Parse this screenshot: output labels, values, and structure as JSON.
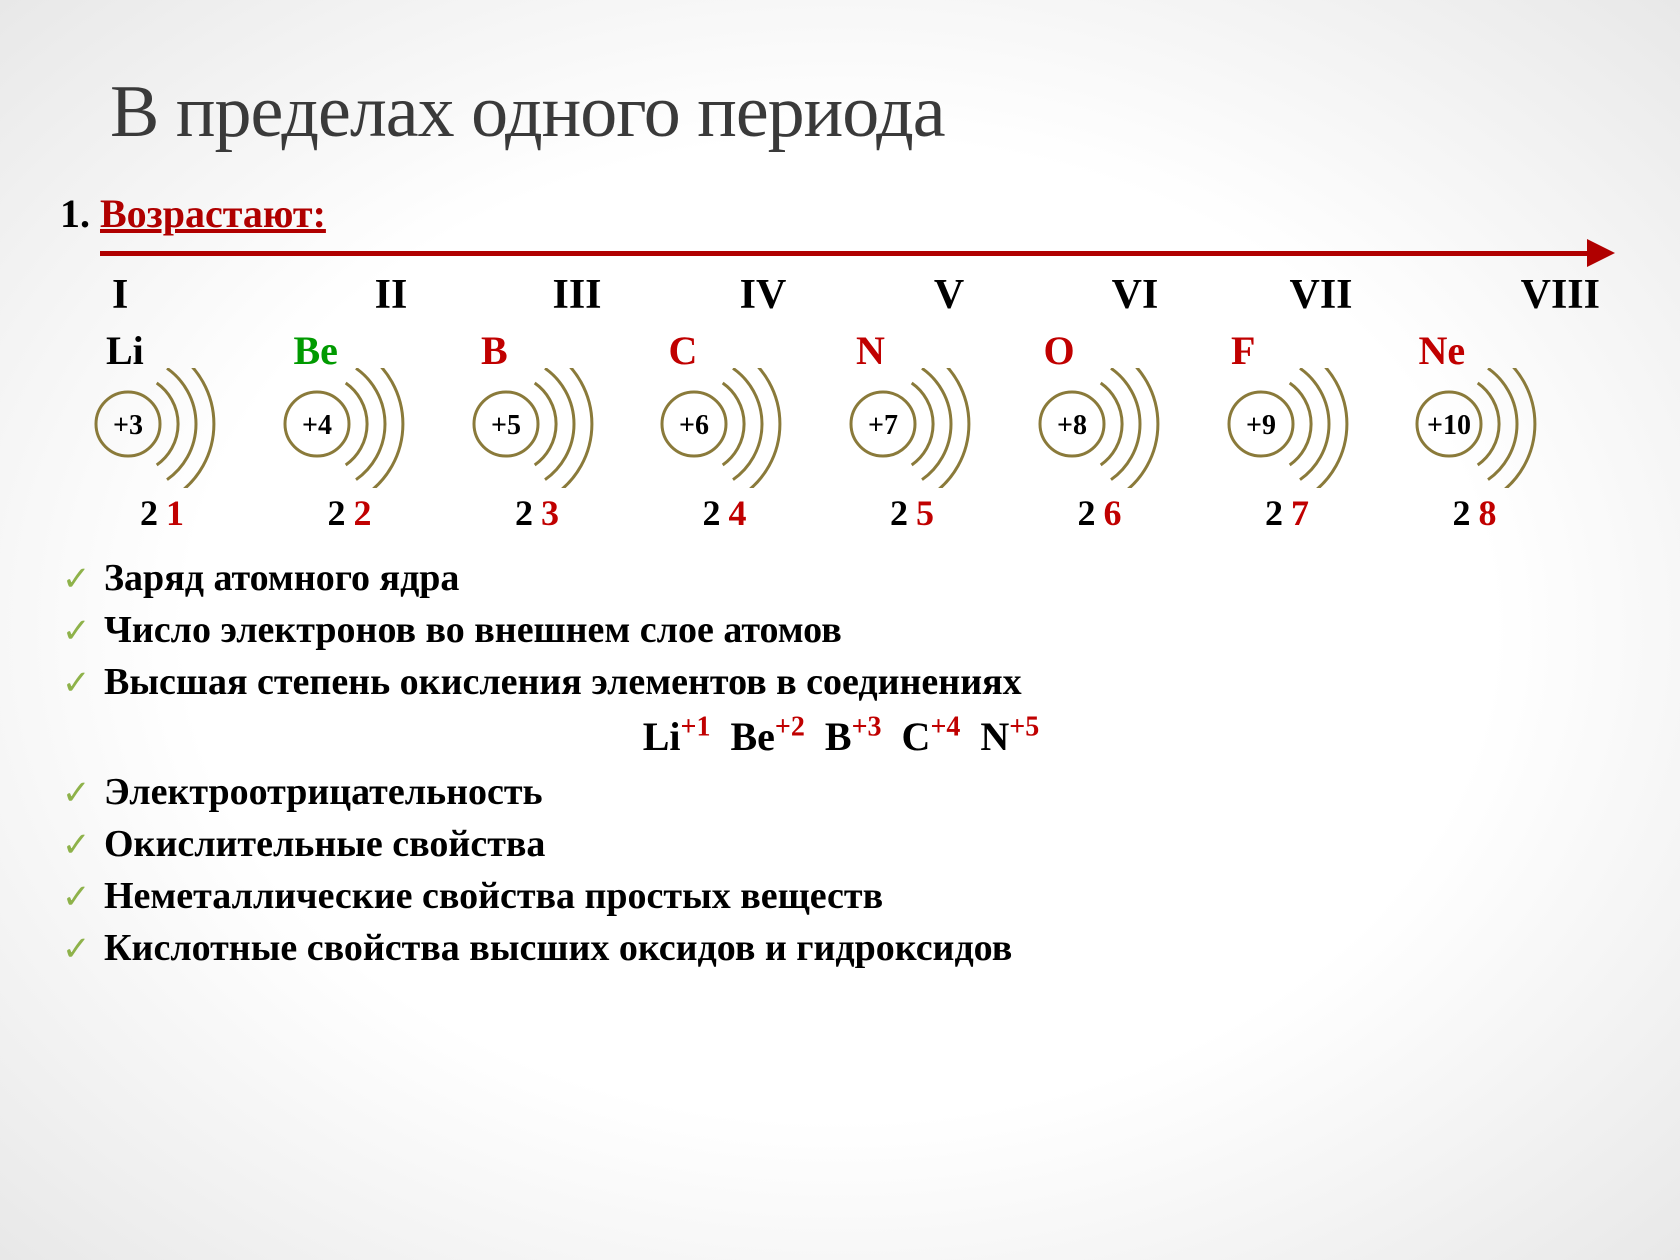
{
  "title": "В пределах одного периода",
  "subtitle_num": "1.",
  "subtitle_text": "Возрастают:",
  "arrow_color": "#b00000",
  "groups": [
    "I",
    "II",
    "III",
    "IV",
    "V",
    "VI",
    "VII",
    "VIII"
  ],
  "elements": [
    {
      "sym": "Li",
      "color": "el-black"
    },
    {
      "sym": "Be",
      "color": "el-green"
    },
    {
      "sym": "B",
      "color": "el-red"
    },
    {
      "sym": "C",
      "color": "el-red"
    },
    {
      "sym": "N",
      "color": "el-red"
    },
    {
      "sym": "O",
      "color": "el-red"
    },
    {
      "sym": "F",
      "color": "el-red"
    },
    {
      "sym": "Ne",
      "color": "el-red"
    }
  ],
  "atoms": [
    {
      "charge": "+3"
    },
    {
      "charge": "+4"
    },
    {
      "charge": "+5"
    },
    {
      "charge": "+6"
    },
    {
      "charge": "+7"
    },
    {
      "charge": "+8"
    },
    {
      "charge": "+9"
    },
    {
      "charge": "+10"
    }
  ],
  "atom_style": {
    "nucleus_r": 32,
    "shell_count": 3,
    "stroke": "#8a7a3a",
    "stroke_width": 3,
    "charge_color": "#000000",
    "charge_fontsize": 28
  },
  "shells": [
    {
      "inner": "2",
      "outer": "1"
    },
    {
      "inner": "2",
      "outer": "2"
    },
    {
      "inner": "2",
      "outer": "3"
    },
    {
      "inner": "2",
      "outer": "4"
    },
    {
      "inner": "2",
      "outer": "5"
    },
    {
      "inner": "2",
      "outer": "6"
    },
    {
      "inner": "2",
      "outer": "7"
    },
    {
      "inner": "2",
      "outer": "8"
    }
  ],
  "bullets": [
    "Заряд атомного ядра",
    "Число электронов во внешнем слое атомов",
    "Высшая степень окисления элементов в соединениях"
  ],
  "oxidation": [
    {
      "el": "Li",
      "ox": "+1"
    },
    {
      "el": "Be",
      "ox": "+2"
    },
    {
      "el": "B",
      "ox": "+3"
    },
    {
      "el": "C",
      "ox": "+4"
    },
    {
      "el": "N",
      "ox": "+5"
    }
  ],
  "bullets2": [
    "Электроотрицательность",
    "Окислительные свойства",
    "Неметаллические свойства простых веществ",
    "Кислотные свойства высших оксидов и гидроксидов"
  ],
  "colors": {
    "title": "#3a3a3a",
    "red": "#c00000",
    "green": "#009a00",
    "check": "#8eb24a",
    "text": "#000000"
  }
}
